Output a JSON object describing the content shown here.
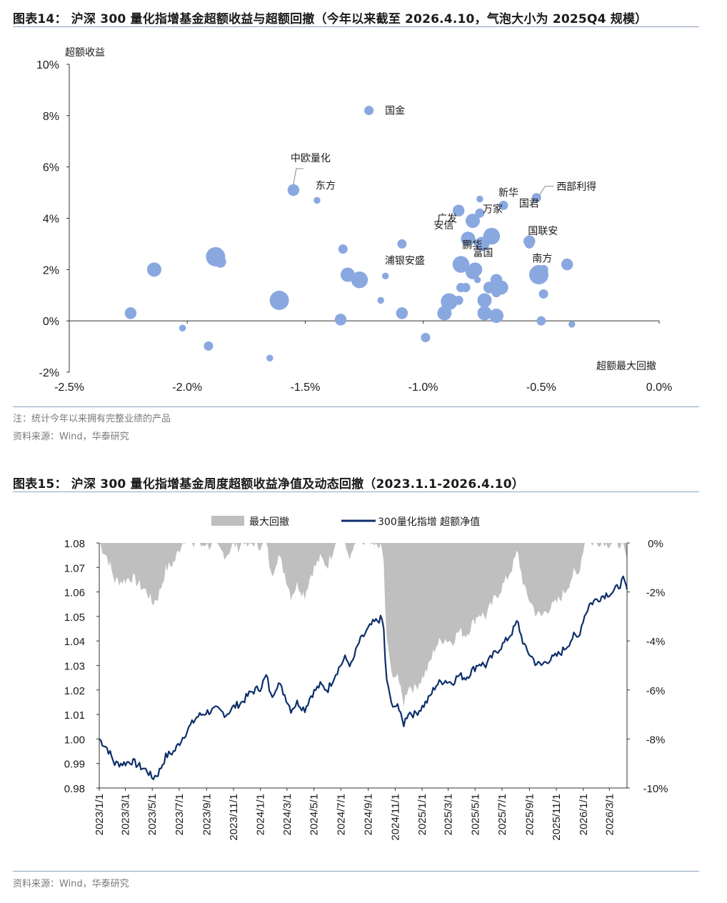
{
  "figure14": {
    "title": "图表14： 沪深 300 量化指增基金超额收益与超额回撤（今年以来截至 2026.4.10，气泡大小为 2025Q4 规模）",
    "note": "注：统计今年以来拥有完整业绩的产品",
    "source": "资料来源：Wind，华泰研究"
  },
  "figure15": {
    "title": "图表15： 沪深 300 量化指增基金周度超额收益净值及动态回撤（2023.1.1-2026.4.10）",
    "source": "资料来源：Wind，华泰研究"
  },
  "chart_data": [
    {
      "type": "scatter",
      "bubble": true,
      "ylabel": "超额收益",
      "xlabel": "超额最大回撤",
      "xlim": [
        -0.025,
        0.0
      ],
      "ylim": [
        -0.02,
        0.1
      ],
      "x_ticks": [
        "-2.5%",
        "-2.0%",
        "-1.5%",
        "-1.0%",
        "-0.5%",
        "0.0%"
      ],
      "y_ticks": [
        "10%",
        "8%",
        "6%",
        "4%",
        "2%",
        "0%",
        "-2%"
      ],
      "color": "#8aa8e0",
      "points": [
        {
          "x": -0.0224,
          "y": 0.003,
          "size": 3
        },
        {
          "x": -0.0214,
          "y": 0.02,
          "size": 4
        },
        {
          "x": -0.0202,
          "y": -0.0028,
          "size": 1
        },
        {
          "x": -0.0191,
          "y": -0.0098,
          "size": 2
        },
        {
          "x": -0.0188,
          "y": 0.025,
          "size": 6
        },
        {
          "x": -0.0186,
          "y": 0.023,
          "size": 3
        },
        {
          "x": -0.0165,
          "y": -0.0145,
          "size": 1
        },
        {
          "x": -0.0161,
          "y": 0.008,
          "size": 6
        },
        {
          "x": -0.0155,
          "y": 0.051,
          "size": 3,
          "label": "中欧量化",
          "label_pos": "above-callout"
        },
        {
          "x": -0.0145,
          "y": 0.047,
          "size": 1,
          "label": "东方",
          "label_pos": "right-up"
        },
        {
          "x": -0.0135,
          "y": 0.0005,
          "size": 3
        },
        {
          "x": -0.0134,
          "y": 0.028,
          "size": 2
        },
        {
          "x": -0.0132,
          "y": 0.018,
          "size": 4
        },
        {
          "x": -0.0127,
          "y": 0.016,
          "size": 5
        },
        {
          "x": -0.0123,
          "y": 0.082,
          "size": 2,
          "label": "国金",
          "label_pos": "right"
        },
        {
          "x": -0.0118,
          "y": 0.008,
          "size": 1
        },
        {
          "x": -0.0116,
          "y": 0.0175,
          "size": 1
        },
        {
          "x": -0.0109,
          "y": 0.03,
          "size": 2,
          "label": "浦银安盛",
          "label_pos": "below"
        },
        {
          "x": -0.0109,
          "y": 0.003,
          "size": 3
        },
        {
          "x": -0.0099,
          "y": -0.0065,
          "size": 2
        },
        {
          "x": -0.0091,
          "y": 0.003,
          "size": 4
        },
        {
          "x": -0.0089,
          "y": 0.0075,
          "size": 5
        },
        {
          "x": -0.0085,
          "y": 0.043,
          "size": 3,
          "label": "广发",
          "label_pos": "below-left"
        },
        {
          "x": -0.0085,
          "y": 0.008,
          "size": 2
        },
        {
          "x": -0.0084,
          "y": 0.022,
          "size": 5
        },
        {
          "x": -0.0084,
          "y": 0.013,
          "size": 2
        },
        {
          "x": -0.0082,
          "y": 0.013,
          "size": 2
        },
        {
          "x": -0.0081,
          "y": 0.032,
          "size": 4,
          "label": "安信",
          "label_pos": "above-left"
        },
        {
          "x": -0.0079,
          "y": 0.039,
          "size": 4
        },
        {
          "x": -0.0079,
          "y": 0.019,
          "size": 4
        },
        {
          "x": -0.0078,
          "y": 0.02,
          "size": 4
        },
        {
          "x": -0.0077,
          "y": 0.016,
          "size": 1
        },
        {
          "x": -0.0076,
          "y": 0.0475,
          "size": 1
        },
        {
          "x": -0.0076,
          "y": 0.042,
          "size": 2,
          "label": "万家",
          "label_pos": "right"
        },
        {
          "x": -0.0075,
          "y": 0.03,
          "size": 4,
          "label": "鹏华",
          "label_pos": "above"
        },
        {
          "x": -0.0074,
          "y": 0.008,
          "size": 4
        },
        {
          "x": -0.0074,
          "y": 0.003,
          "size": 4
        },
        {
          "x": -0.0072,
          "y": 0.013,
          "size": 3
        },
        {
          "x": -0.0071,
          "y": 0.033,
          "size": 5,
          "label": "富国",
          "label_pos": "below"
        },
        {
          "x": -0.0069,
          "y": 0.016,
          "size": 3
        },
        {
          "x": -0.0069,
          "y": 0.011,
          "size": 2
        },
        {
          "x": -0.0069,
          "y": 0.002,
          "size": 4
        },
        {
          "x": -0.0067,
          "y": 0.013,
          "size": 4
        },
        {
          "x": -0.0066,
          "y": 0.045,
          "size": 2,
          "label": "新华",
          "label_pos": "above"
        },
        {
          "x": -0.0052,
          "y": 0.048,
          "size": 2,
          "label": "西部利得",
          "label_pos": "right-callout"
        },
        {
          "x": -0.0055,
          "y": 0.031,
          "size": 3,
          "label": "国联安",
          "label_pos": "above-right"
        },
        {
          "x": -0.0055,
          "y": 0.03,
          "size": 2,
          "label": "南方",
          "label_pos": "right"
        },
        {
          "x": -0.0051,
          "y": 0.018,
          "size": 6
        },
        {
          "x": -0.0049,
          "y": 0.02,
          "size": 2
        },
        {
          "x": -0.0049,
          "y": 0.0105,
          "size": 2
        },
        {
          "x": -0.005,
          "y": 0.0,
          "size": 2
        },
        {
          "x": -0.0039,
          "y": 0.022,
          "size": 3
        },
        {
          "x": -0.0037,
          "y": -0.0013,
          "size": 1
        }
      ],
      "extra_labels": [
        {
          "text": "国君",
          "near_x": -0.0066,
          "near_y": 0.045
        }
      ]
    },
    {
      "type": "line",
      "legend": [
        "最大回撤",
        "300量化指增 超额净值"
      ],
      "series_colors": {
        "drawdown": "#bfbfbf",
        "nav": "#0d2f6b"
      },
      "ylim_left": [
        0.98,
        1.08
      ],
      "ylim_right": [
        -0.1,
        0.0
      ],
      "y_ticks_left": [
        "1.08",
        "1.07",
        "1.06",
        "1.05",
        "1.04",
        "1.03",
        "1.02",
        "1.01",
        "1.00",
        "0.99",
        "0.98"
      ],
      "y_ticks_right": [
        "0%",
        "-2%",
        "-4%",
        "-6%",
        "-8%",
        "-10%"
      ],
      "x_ticks": [
        "2023/1/1",
        "2023/3/1",
        "2023/5/1",
        "2023/7/1",
        "2023/9/1",
        "2023/11/1",
        "2024/1/1",
        "2024/3/1",
        "2024/5/1",
        "2024/7/1",
        "2024/9/1",
        "2024/11/1",
        "2025/1/1",
        "2025/3/1",
        "2025/5/1",
        "2025/7/1",
        "2025/9/1",
        "2025/11/1",
        "2026/1/1",
        "2026/3/1"
      ],
      "x_range": [
        "2023-01-01",
        "2026-04-10"
      ],
      "nav_anchors": [
        [
          "2023-01-01",
          1.0
        ],
        [
          "2023-01-20",
          0.996
        ],
        [
          "2023-02-05",
          0.99
        ],
        [
          "2023-02-25",
          0.99
        ],
        [
          "2023-03-15",
          0.991
        ],
        [
          "2023-04-01",
          0.989
        ],
        [
          "2023-04-20",
          0.987
        ],
        [
          "2023-05-01",
          0.984
        ],
        [
          "2023-05-15",
          0.986
        ],
        [
          "2023-06-01",
          0.993
        ],
        [
          "2023-06-20",
          0.995
        ],
        [
          "2023-07-10",
          1.001
        ],
        [
          "2023-07-25",
          1.005
        ],
        [
          "2023-08-10",
          1.009
        ],
        [
          "2023-09-01",
          1.011
        ],
        [
          "2023-09-25",
          1.012
        ],
        [
          "2023-10-15",
          1.01
        ],
        [
          "2023-11-01",
          1.013
        ],
        [
          "2023-11-20",
          1.015
        ],
        [
          "2023-12-10",
          1.019
        ],
        [
          "2024-01-01",
          1.021
        ],
        [
          "2024-01-15",
          1.026
        ],
        [
          "2024-01-25",
          1.017
        ],
        [
          "2024-02-10",
          1.023
        ],
        [
          "2024-02-25",
          1.018
        ],
        [
          "2024-03-10",
          1.012
        ],
        [
          "2024-03-25",
          1.015
        ],
        [
          "2024-04-10",
          1.012
        ],
        [
          "2024-04-25",
          1.018
        ],
        [
          "2024-05-15",
          1.022
        ],
        [
          "2024-06-01",
          1.02
        ],
        [
          "2024-06-20",
          1.027
        ],
        [
          "2024-07-10",
          1.033
        ],
        [
          "2024-07-25",
          1.03
        ],
        [
          "2024-08-10",
          1.039
        ],
        [
          "2024-08-25",
          1.043
        ],
        [
          "2024-09-10",
          1.047
        ],
        [
          "2024-09-28",
          1.049
        ],
        [
          "2024-10-05",
          1.048
        ],
        [
          "2024-10-12",
          1.024
        ],
        [
          "2024-10-20",
          1.018
        ],
        [
          "2024-10-28",
          1.011
        ],
        [
          "2024-11-05",
          1.016
        ],
        [
          "2024-11-12",
          1.01
        ],
        [
          "2024-11-20",
          1.006
        ],
        [
          "2024-12-01",
          1.011
        ],
        [
          "2024-12-15",
          1.01
        ],
        [
          "2025-01-01",
          1.013
        ],
        [
          "2025-01-15",
          1.016
        ],
        [
          "2025-02-01",
          1.022
        ],
        [
          "2025-02-20",
          1.024
        ],
        [
          "2025-03-10",
          1.023
        ],
        [
          "2025-03-25",
          1.026
        ],
        [
          "2025-04-10",
          1.025
        ],
        [
          "2025-04-25",
          1.028
        ],
        [
          "2025-05-10",
          1.031
        ],
        [
          "2025-05-25",
          1.03
        ],
        [
          "2025-06-10",
          1.034
        ],
        [
          "2025-06-25",
          1.037
        ],
        [
          "2025-07-10",
          1.04
        ],
        [
          "2025-07-25",
          1.044
        ],
        [
          "2025-08-05",
          1.048
        ],
        [
          "2025-08-15",
          1.041
        ],
        [
          "2025-08-25",
          1.036
        ],
        [
          "2025-09-05",
          1.034
        ],
        [
          "2025-09-15",
          1.031
        ],
        [
          "2025-09-28",
          1.03
        ],
        [
          "2025-10-10",
          1.032
        ],
        [
          "2025-10-25",
          1.033
        ],
        [
          "2025-11-10",
          1.035
        ],
        [
          "2025-11-25",
          1.038
        ],
        [
          "2025-12-10",
          1.042
        ],
        [
          "2025-12-20",
          1.041
        ],
        [
          "2026-01-01",
          1.049
        ],
        [
          "2026-01-15",
          1.055
        ],
        [
          "2026-02-01",
          1.057
        ],
        [
          "2026-02-20",
          1.059
        ],
        [
          "2026-03-10",
          1.06
        ],
        [
          "2026-03-25",
          1.063
        ],
        [
          "2026-04-01",
          1.065
        ],
        [
          "2026-04-10",
          1.061
        ]
      ]
    }
  ]
}
